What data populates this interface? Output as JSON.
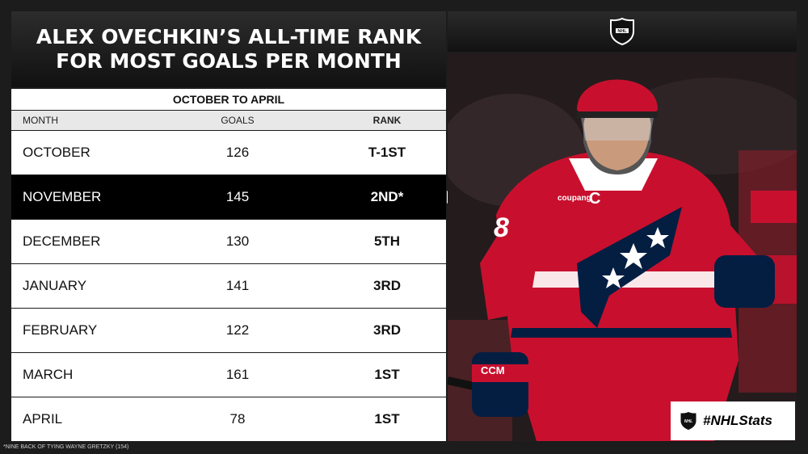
{
  "header": {
    "title_line1": "ALEX OVECHKIN’S ALL-TIME RANK",
    "title_line2": "FOR MOST GOALS PER MONTH",
    "subtitle": "OCTOBER TO APRIL"
  },
  "table": {
    "columns": [
      "MONTH",
      "GOALS",
      "RANK"
    ],
    "rows": [
      {
        "month": "OCTOBER",
        "goals": "126",
        "rank": "T-1ST"
      },
      {
        "month": "NOVEMBER",
        "goals": "145",
        "rank": "2ND*"
      },
      {
        "month": "DECEMBER",
        "goals": "130",
        "rank": "5TH"
      },
      {
        "month": "JANUARY",
        "goals": "141",
        "rank": "3RD"
      },
      {
        "month": "FEBRUARY",
        "goals": "122",
        "rank": "3RD"
      },
      {
        "month": "MARCH",
        "goals": "161",
        "rank": "1ST"
      },
      {
        "month": "APRIL",
        "goals": "78",
        "rank": "1ST"
      }
    ],
    "highlighted_row": "NOVEMBER"
  },
  "footnote": "*NINE BACK OF TYING WAYNE GRETZKY (154)",
  "photo": {
    "jersey_number": "8",
    "captain_letter": "C",
    "jersey_sponsor": "coupang",
    "glove_brand": "CCM"
  },
  "branding": {
    "logo_icon": "nhl-shield-icon",
    "hashtag": "#NHLStats"
  },
  "colors": {
    "accent_red": "#c8102e",
    "navy": "#041e42",
    "highlight_row": "#000000"
  }
}
